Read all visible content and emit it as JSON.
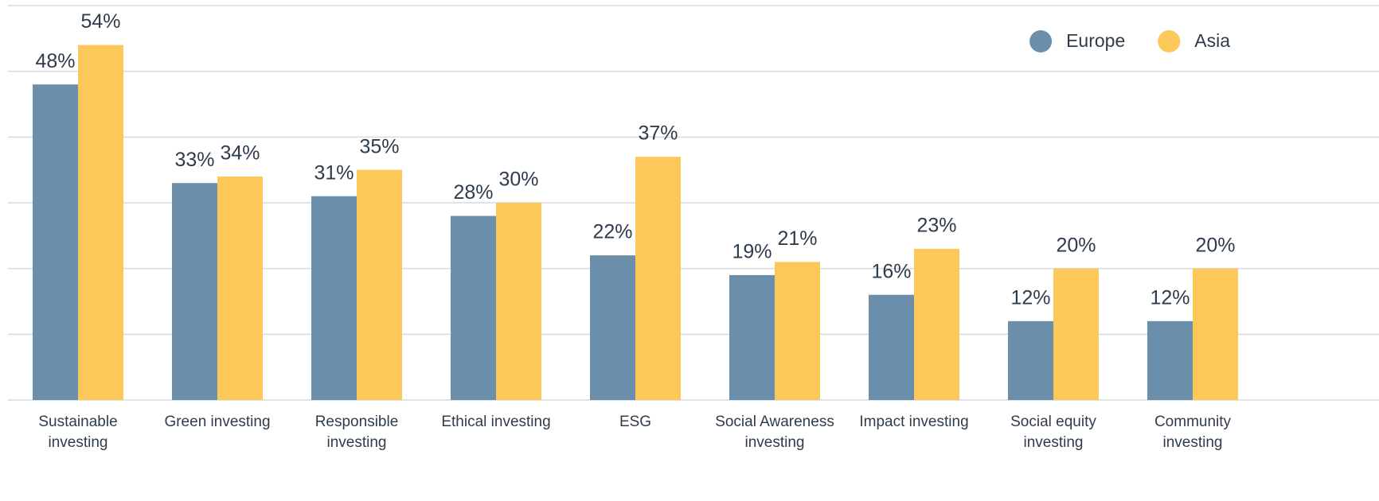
{
  "chart_data": {
    "type": "bar",
    "categories": [
      "Sustainable investing",
      "Green investing",
      "Responsible investing",
      "Ethical investing",
      "ESG",
      "Social Awareness investing",
      "Impact investing",
      "Social equity investing",
      "Community investing"
    ],
    "series": [
      {
        "name": "Europe",
        "color": "#6b8fab",
        "values": [
          48,
          33,
          31,
          28,
          22,
          19,
          16,
          12,
          12
        ],
        "value_labels": [
          "48%",
          "33%",
          "31%",
          "28%",
          "22%",
          "19%",
          "16%",
          "12%",
          "12%"
        ]
      },
      {
        "name": "Asia",
        "color": "#fcc859",
        "values": [
          54,
          34,
          35,
          30,
          37,
          21,
          23,
          20,
          20
        ],
        "value_labels": [
          "54%",
          "34%",
          "35%",
          "30%",
          "37%",
          "21%",
          "23%",
          "20%",
          "20%"
        ]
      }
    ],
    "ylim": [
      0,
      60
    ],
    "yticks": [
      0,
      10,
      20,
      30,
      40,
      50,
      60
    ],
    "grid": true,
    "legend": "top-right"
  }
}
